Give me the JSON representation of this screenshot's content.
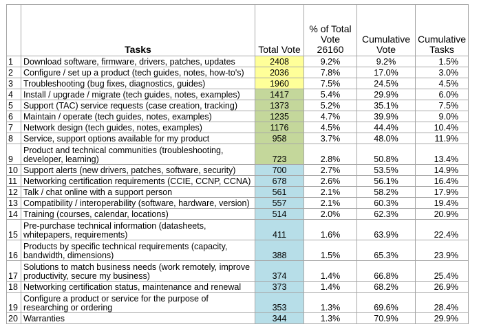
{
  "headers": {
    "num": "",
    "tasks": "Tasks",
    "total_vote": "Total Vote",
    "pct_total": "% of Total Vote 26160",
    "cumulative_vote": "Cumulative Vote",
    "cumulative_tasks": "Cumulative Tasks"
  },
  "colors": {
    "yellow": "#ffff99",
    "green": "#c4d79b",
    "blue": "#b7dee8",
    "border": "#a6a6a6"
  },
  "rows": [
    {
      "num": "1",
      "task": "Download software, firmware, drivers, patches, updates",
      "vote": "2408",
      "pct": "9.2%",
      "cum_vote": "9.2%",
      "cum_tasks": "1.5%",
      "color": "yellow"
    },
    {
      "num": "2",
      "task": "Configure / set up a product  (tech guides, notes, how-to's)",
      "vote": "2036",
      "pct": "7.8%",
      "cum_vote": "17.0%",
      "cum_tasks": "3.0%",
      "color": "yellow"
    },
    {
      "num": "3",
      "task": "Troubleshooting (bug fixes, diagnostics, guides)",
      "vote": "1960",
      "pct": "7.5%",
      "cum_vote": "24.5%",
      "cum_tasks": "4.5%",
      "color": "yellow"
    },
    {
      "num": "4",
      "task": "Install / upgrade / migrate (tech guides, notes, examples)",
      "vote": "1417",
      "pct": "5.4%",
      "cum_vote": "29.9%",
      "cum_tasks": "6.0%",
      "color": "green"
    },
    {
      "num": "5",
      "task": "Support (TAC) service requests (case creation, tracking)",
      "vote": "1373",
      "pct": "5.2%",
      "cum_vote": "35.1%",
      "cum_tasks": "7.5%",
      "color": "green"
    },
    {
      "num": "6",
      "task": "Maintain / operate (tech guides, notes, examples)",
      "vote": "1235",
      "pct": "4.7%",
      "cum_vote": "39.9%",
      "cum_tasks": "9.0%",
      "color": "green"
    },
    {
      "num": "7",
      "task": "Network design (tech guides, notes, examples)",
      "vote": "1176",
      "pct": "4.5%",
      "cum_vote": "44.4%",
      "cum_tasks": "10.4%",
      "color": "green"
    },
    {
      "num": "8",
      "task": "Service, support options available for my product",
      "vote": "958",
      "pct": "3.7%",
      "cum_vote": "48.0%",
      "cum_tasks": "11.9%",
      "color": "green"
    },
    {
      "num": "9",
      "task": "Product and technical communities (troubleshooting, developer, learning)",
      "vote": "723",
      "pct": "2.8%",
      "cum_vote": "50.8%",
      "cum_tasks": "13.4%",
      "color": "green",
      "wrap": true
    },
    {
      "num": "10",
      "task": "Support alerts (new drivers, patches, software, security)",
      "vote": "700",
      "pct": "2.7%",
      "cum_vote": "53.5%",
      "cum_tasks": "14.9%",
      "color": "blue"
    },
    {
      "num": "11",
      "task": "Networking certification requirements (CCIE, CCNP, CCNA)",
      "vote": "678",
      "pct": "2.6%",
      "cum_vote": "56.1%",
      "cum_tasks": "16.4%",
      "color": "blue"
    },
    {
      "num": "12",
      "task": "Talk / chat online with a support person",
      "vote": "561",
      "pct": "2.1%",
      "cum_vote": "58.2%",
      "cum_tasks": "17.9%",
      "color": "blue"
    },
    {
      "num": "13",
      "task": "Compatibility / interoperability (software, hardware, version)",
      "vote": "557",
      "pct": "2.1%",
      "cum_vote": "60.3%",
      "cum_tasks": "19.4%",
      "color": "blue"
    },
    {
      "num": "14",
      "task": "Training (courses, calendar, locations)",
      "vote": "514",
      "pct": "2.0%",
      "cum_vote": "62.3%",
      "cum_tasks": "20.9%",
      "color": "blue"
    },
    {
      "num": "15",
      "task": "Pre-purchase technical information (datasheets, whitepapers, requirements)",
      "vote": "411",
      "pct": "1.6%",
      "cum_vote": "63.9%",
      "cum_tasks": "22.4%",
      "color": "blue",
      "wrap": true
    },
    {
      "num": "16",
      "task": "Products by specific technical requirements (capacity, bandwidth, dimensions)",
      "vote": "388",
      "pct": "1.5%",
      "cum_vote": "65.3%",
      "cum_tasks": "23.9%",
      "color": "blue",
      "wrap": true
    },
    {
      "num": "17",
      "task": "Solutions to match business needs (work remotely, improve productivity, secure my business)",
      "vote": "374",
      "pct": "1.4%",
      "cum_vote": "66.8%",
      "cum_tasks": "25.4%",
      "color": "blue",
      "wrap": true
    },
    {
      "num": "18",
      "task": "Networking certification status, maintenance and renewal",
      "vote": "373",
      "pct": "1.4%",
      "cum_vote": "68.2%",
      "cum_tasks": "26.9%",
      "color": "blue"
    },
    {
      "num": "19",
      "task": "Configure a product or service for the purpose of researching or ordering",
      "vote": "353",
      "pct": "1.3%",
      "cum_vote": "69.6%",
      "cum_tasks": "28.4%",
      "color": "blue",
      "wrap": true
    },
    {
      "num": "20",
      "task": "Warranties",
      "vote": "344",
      "pct": "1.3%",
      "cum_vote": "70.9%",
      "cum_tasks": "29.9%",
      "color": "blue"
    }
  ]
}
